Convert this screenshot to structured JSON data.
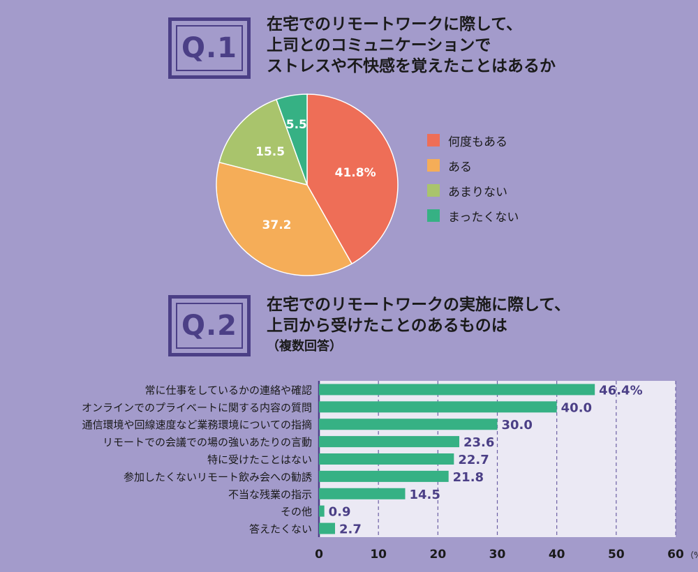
{
  "q1": {
    "badge": "Q.1",
    "lines": [
      "在宅でのリモートワークに際して、",
      "上司とのコミュニケーションで",
      "ストレスや不快感を覚えたことはあるか"
    ]
  },
  "q2": {
    "badge": "Q.2",
    "lines": [
      "在宅でのリモートワークの実施に際して、",
      "上司から受けたことのあるものは"
    ],
    "sub": "（複数回答）"
  },
  "chart_data": [
    {
      "type": "pie",
      "categories": [
        "何度もある",
        "ある",
        "あまりない",
        "まったくない"
      ],
      "values": [
        41.8,
        37.2,
        15.5,
        5.5
      ],
      "labels": [
        "41.8%",
        "37.2",
        "15.5",
        "5.5"
      ],
      "colors": [
        "#ee6e57",
        "#f5ad58",
        "#a9c46c",
        "#36b184"
      ],
      "legend_position": "right"
    },
    {
      "type": "bar",
      "orientation": "horizontal",
      "categories": [
        "常に仕事をしているかの連絡や確認",
        "オンラインでのプライベートに関する内容の質問",
        "通信環境や回線速度など業務環境についての指摘",
        "リモートでの会議での場の強いあたりの言動",
        "特に受けたことはない",
        "参加したくないリモート飲み会への勧誘",
        "不当な残業の指示",
        "その他",
        "答えたくない"
      ],
      "values": [
        46.4,
        40.0,
        30.0,
        23.6,
        22.7,
        21.8,
        14.5,
        0.9,
        2.7
      ],
      "labels": [
        "46.4%",
        "40.0",
        "30.0",
        "23.6",
        "22.7",
        "21.8",
        "14.5",
        "0.9",
        "2.7"
      ],
      "xticks": [
        "0",
        "10",
        "20",
        "30",
        "40",
        "50",
        "60"
      ],
      "xunit": "（%）",
      "xlim": [
        0,
        60
      ],
      "grid": true,
      "bar_color": "#36b184"
    }
  ]
}
